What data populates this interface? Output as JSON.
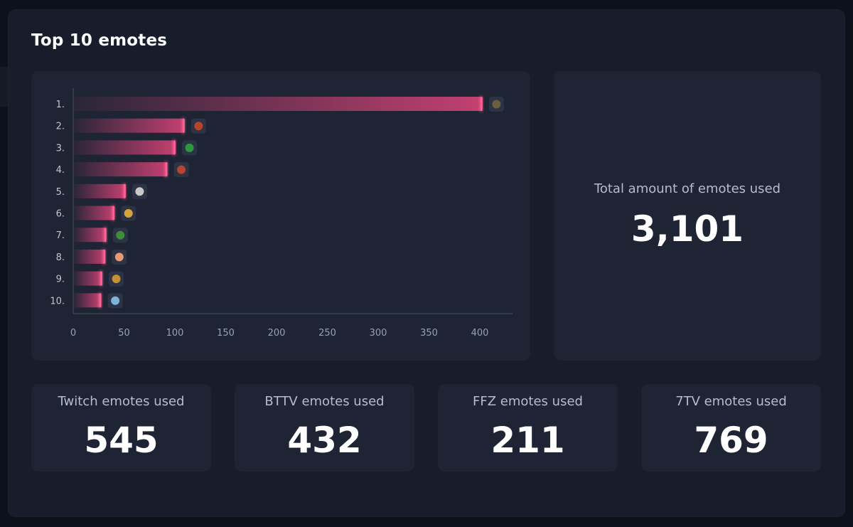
{
  "panel": {
    "title": "Top 10 emotes"
  },
  "chart_data": {
    "type": "bar",
    "orientation": "horizontal",
    "title": "Top 10 emotes",
    "categories": [
      "1.",
      "2.",
      "3.",
      "4.",
      "5.",
      "6.",
      "7.",
      "8.",
      "9.",
      "10."
    ],
    "values": [
      402,
      109,
      100,
      92,
      51,
      40,
      32,
      31,
      28,
      27
    ],
    "xticks": [
      0,
      50,
      100,
      150,
      200,
      250,
      300,
      350,
      400
    ],
    "xlim": [
      0,
      432
    ],
    "xlabel": "",
    "ylabel": "",
    "grid": false,
    "bar_color": "#e0457b",
    "emote_icons": [
      "emote-icon-1",
      "emote-icon-2",
      "emote-icon-3",
      "emote-icon-4",
      "emote-icon-5",
      "emote-icon-6",
      "emote-icon-7",
      "emote-icon-8",
      "emote-icon-9",
      "emote-icon-10"
    ]
  },
  "total": {
    "label": "Total amount of emotes used",
    "value": "3,101"
  },
  "stats": [
    {
      "label": "Twitch emotes used",
      "value": "545"
    },
    {
      "label": "BTTV emotes used",
      "value": "432"
    },
    {
      "label": "FFZ emotes used",
      "value": "211"
    },
    {
      "label": "7TV emotes used",
      "value": "769"
    }
  ]
}
